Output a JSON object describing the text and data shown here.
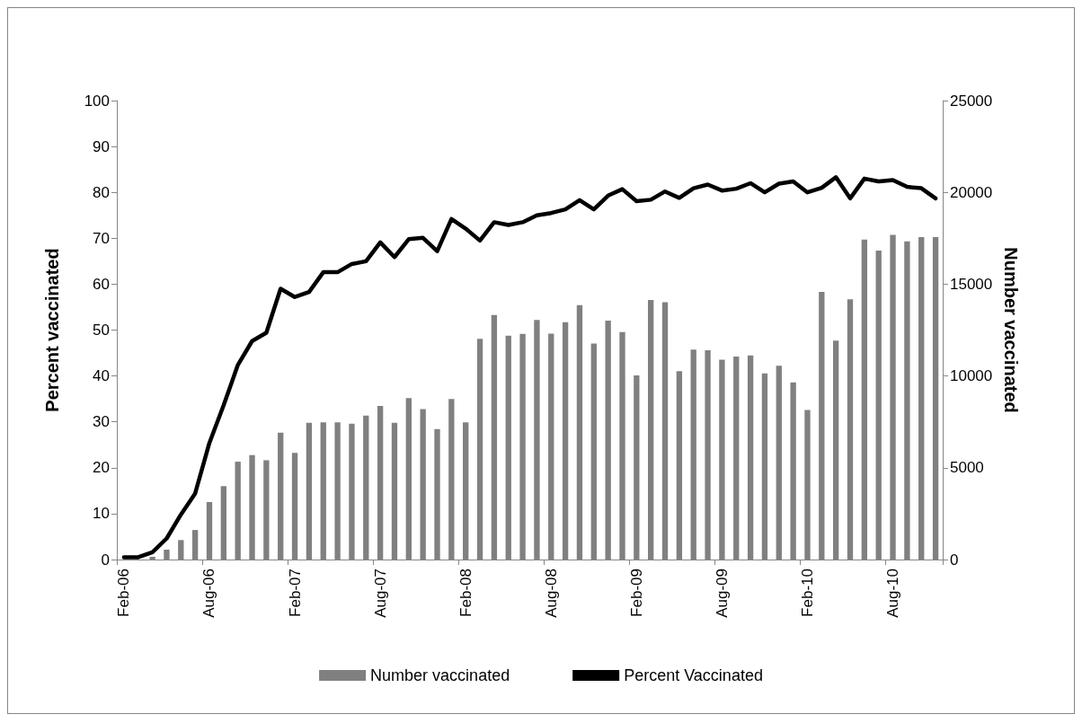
{
  "chart_data": {
    "type": "bar",
    "ylabel": "Percent vaccinated",
    "y2label": "Number vaccinated",
    "categories": [
      "Feb-06",
      null,
      null,
      null,
      null,
      null,
      "Aug-06",
      null,
      null,
      null,
      null,
      null,
      "Feb-07",
      null,
      null,
      null,
      null,
      null,
      "Aug-07",
      null,
      null,
      null,
      null,
      null,
      "Feb-08",
      null,
      null,
      null,
      null,
      null,
      "Aug-08",
      null,
      null,
      null,
      null,
      null,
      "Feb-09",
      null,
      null,
      null,
      null,
      null,
      "Aug-09",
      null,
      null,
      null,
      null,
      null,
      "Feb-10",
      null,
      null,
      null,
      null,
      null,
      "Aug-10",
      null,
      null,
      null
    ],
    "series": [
      {
        "name": "Number vaccinated",
        "axis": "y2",
        "color": "#808080",
        "values": [
          0,
          0,
          150,
          540,
          1060,
          1610,
          3130,
          4000,
          5330,
          5690,
          5410,
          6910,
          5810,
          7450,
          7470,
          7470,
          7400,
          7840,
          8370,
          7450,
          8790,
          8190,
          7110,
          8740,
          7470,
          12020,
          13320,
          12200,
          12290,
          13050,
          12310,
          12930,
          13860,
          11770,
          13010,
          12390,
          10030,
          14140,
          14020,
          10260,
          11430,
          11400,
          10890,
          11060,
          11120,
          10140,
          10550,
          9650,
          8150,
          14580,
          11920,
          14170,
          17430,
          16830,
          17680,
          17330,
          17560,
          17560
        ]
      },
      {
        "name": "Percent Vaccinated",
        "type": "line",
        "color": "#000000",
        "values": [
          0.5,
          0.5,
          1.6,
          4.6,
          9.8,
          14.4,
          25.4,
          33.6,
          42.4,
          47.6,
          49.4,
          59.0,
          57.2,
          58.3,
          62.6,
          62.6,
          64.4,
          65.0,
          69.1,
          65.9,
          69.8,
          70.1,
          67.2,
          74.2,
          72.1,
          69.5,
          73.5,
          72.9,
          73.5,
          75.0,
          75.5,
          76.3,
          78.3,
          76.3,
          79.3,
          80.7,
          78.1,
          78.4,
          80.2,
          78.8,
          80.9,
          81.7,
          80.4,
          80.8,
          82.0,
          80.0,
          81.9,
          82.4,
          80.0,
          81.0,
          83.3,
          78.7,
          83.0,
          82.4,
          82.7,
          81.2,
          80.9,
          78.7
        ]
      }
    ],
    "ylim": [
      0,
      100
    ],
    "yticks": [
      0,
      10,
      20,
      30,
      40,
      50,
      60,
      70,
      80,
      90,
      100
    ],
    "y2lim": [
      0,
      25000
    ],
    "y2ticks": [
      0,
      5000,
      10000,
      15000,
      20000,
      25000
    ],
    "grid": false,
    "legend": "bottom",
    "marker": "none",
    "line_style": "solid"
  }
}
